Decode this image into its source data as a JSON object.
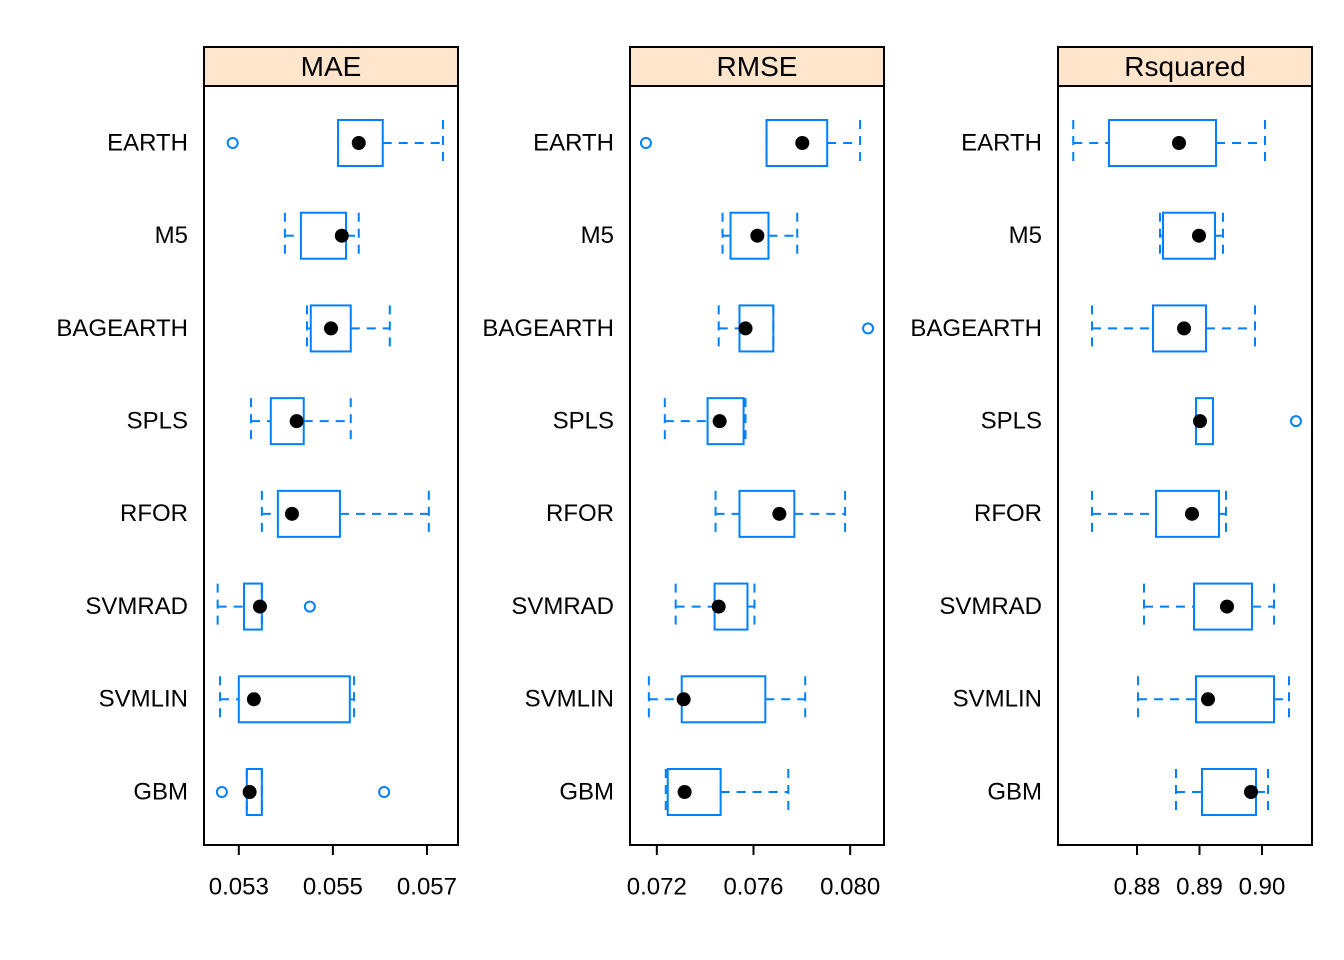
{
  "chart_data": [
    {
      "type": "box",
      "title": "MAE",
      "strip_color": "#ffe5cc",
      "color": "#0080ff",
      "median_color": "#000000",
      "categories": [
        "EARTH",
        "M5",
        "BAGEARTH",
        "SPLS",
        "RFOR",
        "SVMRAD",
        "SVMLIN",
        "GBM"
      ],
      "boxes": [
        {
          "min": 0.05511,
          "q1": 0.05511,
          "median": 0.05555,
          "q3": 0.05606,
          "max": 0.05734,
          "outliers": [
            0.05287
          ]
        },
        {
          "min": 0.05398,
          "q1": 0.05432,
          "median": 0.05519,
          "q3": 0.05528,
          "max": 0.05555
        },
        {
          "min": 0.05445,
          "q1": 0.05453,
          "median": 0.05496,
          "q3": 0.05538,
          "max": 0.05621
        },
        {
          "min": 0.05326,
          "q1": 0.05368,
          "median": 0.05423,
          "q3": 0.05438,
          "max": 0.05538
        },
        {
          "min": 0.05349,
          "q1": 0.05383,
          "median": 0.05413,
          "q3": 0.05515,
          "max": 0.05704
        },
        {
          "min": 0.05255,
          "q1": 0.05311,
          "median": 0.05345,
          "q3": 0.05349,
          "max": 0.05349,
          "outliers": [
            0.05451
          ]
        },
        {
          "min": 0.0526,
          "q1": 0.053,
          "median": 0.05332,
          "q3": 0.05536,
          "max": 0.05545
        },
        {
          "min": 0.05317,
          "q1": 0.05317,
          "median": 0.05323,
          "q3": 0.05349,
          "max": 0.05349,
          "outliers": [
            0.05264,
            0.05609
          ]
        }
      ],
      "xlim": [
        0.05226,
        0.05766
      ],
      "xticks": [
        {
          "value": 0.053,
          "label": "0.053"
        },
        {
          "value": 0.055,
          "label": "0.055"
        },
        {
          "value": 0.057,
          "label": "0.057"
        }
      ]
    },
    {
      "type": "box",
      "title": "RMSE",
      "strip_color": "#ffe5cc",
      "color": "#0080ff",
      "median_color": "#000000",
      "categories": [
        "EARTH",
        "M5",
        "BAGEARTH",
        "SPLS",
        "RFOR",
        "SVMRAD",
        "SVMLIN",
        "GBM"
      ],
      "boxes": [
        {
          "min": 0.07654,
          "q1": 0.07654,
          "median": 0.07802,
          "q3": 0.07905,
          "max": 0.08041,
          "outliers": [
            0.07155
          ]
        },
        {
          "min": 0.07472,
          "q1": 0.07505,
          "median": 0.07616,
          "q3": 0.07662,
          "max": 0.07781
        },
        {
          "min": 0.07456,
          "q1": 0.07542,
          "median": 0.07567,
          "q3": 0.07682,
          "max": 0.07682,
          "outliers": [
            0.08074
          ]
        },
        {
          "min": 0.07233,
          "q1": 0.0741,
          "median": 0.0746,
          "q3": 0.07559,
          "max": 0.07567
        },
        {
          "min": 0.07443,
          "q1": 0.07542,
          "median": 0.07707,
          "q3": 0.07769,
          "max": 0.07979
        },
        {
          "min": 0.07278,
          "q1": 0.07439,
          "median": 0.07456,
          "q3": 0.07575,
          "max": 0.07604
        },
        {
          "min": 0.07167,
          "q1": 0.07303,
          "median": 0.07311,
          "q3": 0.07649,
          "max": 0.07814
        },
        {
          "min": 0.07237,
          "q1": 0.07245,
          "median": 0.07315,
          "q3": 0.07464,
          "max": 0.07744
        }
      ],
      "xlim": [
        0.07089,
        0.0814
      ],
      "xticks": [
        {
          "value": 0.072,
          "label": "0.072"
        },
        {
          "value": 0.076,
          "label": "0.076"
        },
        {
          "value": 0.08,
          "label": "0.080"
        }
      ]
    },
    {
      "type": "box",
      "title": "Rsquared",
      "strip_color": "#ffe5cc",
      "color": "#0080ff",
      "median_color": "#000000",
      "categories": [
        "EARTH",
        "M5",
        "BAGEARTH",
        "SPLS",
        "RFOR",
        "SVMRAD",
        "SVMLIN",
        "GBM"
      ],
      "boxes": [
        {
          "min": 0.8698,
          "q1": 0.87552,
          "median": 0.88672,
          "q3": 0.89264,
          "max": 0.90048
        },
        {
          "min": 0.88368,
          "q1": 0.88416,
          "median": 0.88992,
          "q3": 0.89248,
          "max": 0.89376
        },
        {
          "min": 0.8728,
          "q1": 0.88256,
          "median": 0.88752,
          "q3": 0.89104,
          "max": 0.89888
        },
        {
          "min": 0.88944,
          "q1": 0.88944,
          "median": 0.89008,
          "q3": 0.89216,
          "max": 0.89216,
          "outliers": [
            0.90544
          ]
        },
        {
          "min": 0.8728,
          "q1": 0.88304,
          "median": 0.8888,
          "q3": 0.89312,
          "max": 0.89424
        },
        {
          "min": 0.88112,
          "q1": 0.88912,
          "median": 0.8944,
          "q3": 0.8984,
          "max": 0.90192
        },
        {
          "min": 0.88016,
          "q1": 0.88944,
          "median": 0.89136,
          "q3": 0.90192,
          "max": 0.90432
        },
        {
          "min": 0.88624,
          "q1": 0.8904,
          "median": 0.89824,
          "q3": 0.89904,
          "max": 0.90096
        }
      ],
      "xlim": [
        0.86736,
        0.908
      ],
      "xticks": [
        {
          "value": 0.88,
          "label": "0.88"
        },
        {
          "value": 0.89,
          "label": "0.89"
        },
        {
          "value": 0.9,
          "label": "0.90"
        }
      ]
    }
  ]
}
